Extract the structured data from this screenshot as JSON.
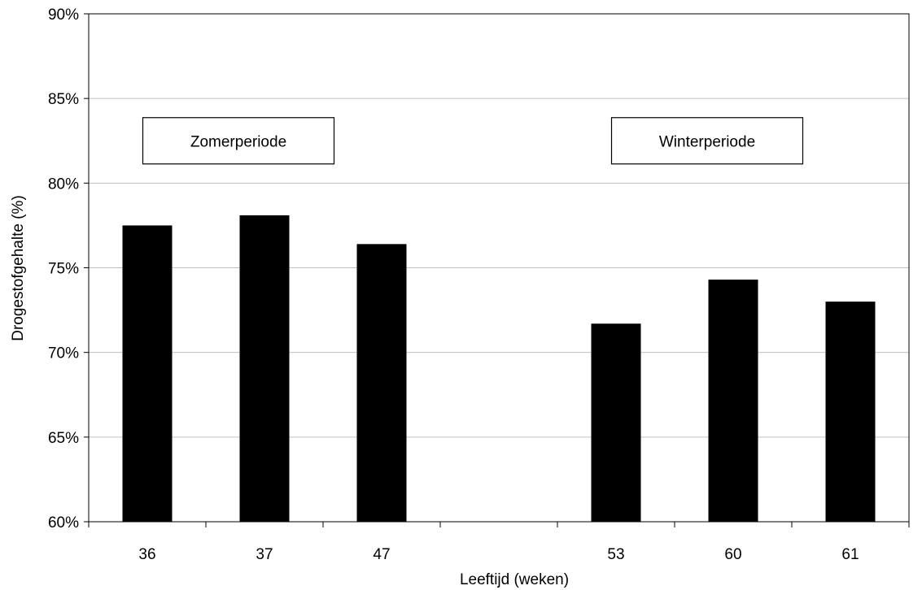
{
  "chart_data": {
    "type": "bar",
    "title": "",
    "xlabel": "Leeftijd (weken)",
    "ylabel": "Drogestofgehalte (%)",
    "ylim": [
      60,
      90
    ],
    "y_unit": "%",
    "yticks": [
      60,
      65,
      70,
      75,
      80,
      85,
      90
    ],
    "ytick_labels": [
      "60%",
      "65%",
      "70%",
      "75%",
      "80%",
      "85%",
      "90%"
    ],
    "categories": [
      "36",
      "37",
      "47",
      "",
      "53",
      "60",
      "61"
    ],
    "values": [
      77.5,
      78.1,
      76.4,
      null,
      71.7,
      74.3,
      73.0
    ],
    "bar_color": "#000000",
    "grid": true,
    "grid_color": "#c0c0c0",
    "legend": "none",
    "annotations": [
      {
        "text": "Zomerperiode",
        "near_categories": [
          "36",
          "47"
        ],
        "y": 82.5
      },
      {
        "text": "Winterperiode",
        "near_categories": [
          "53",
          "61"
        ],
        "y": 82.5
      }
    ]
  }
}
